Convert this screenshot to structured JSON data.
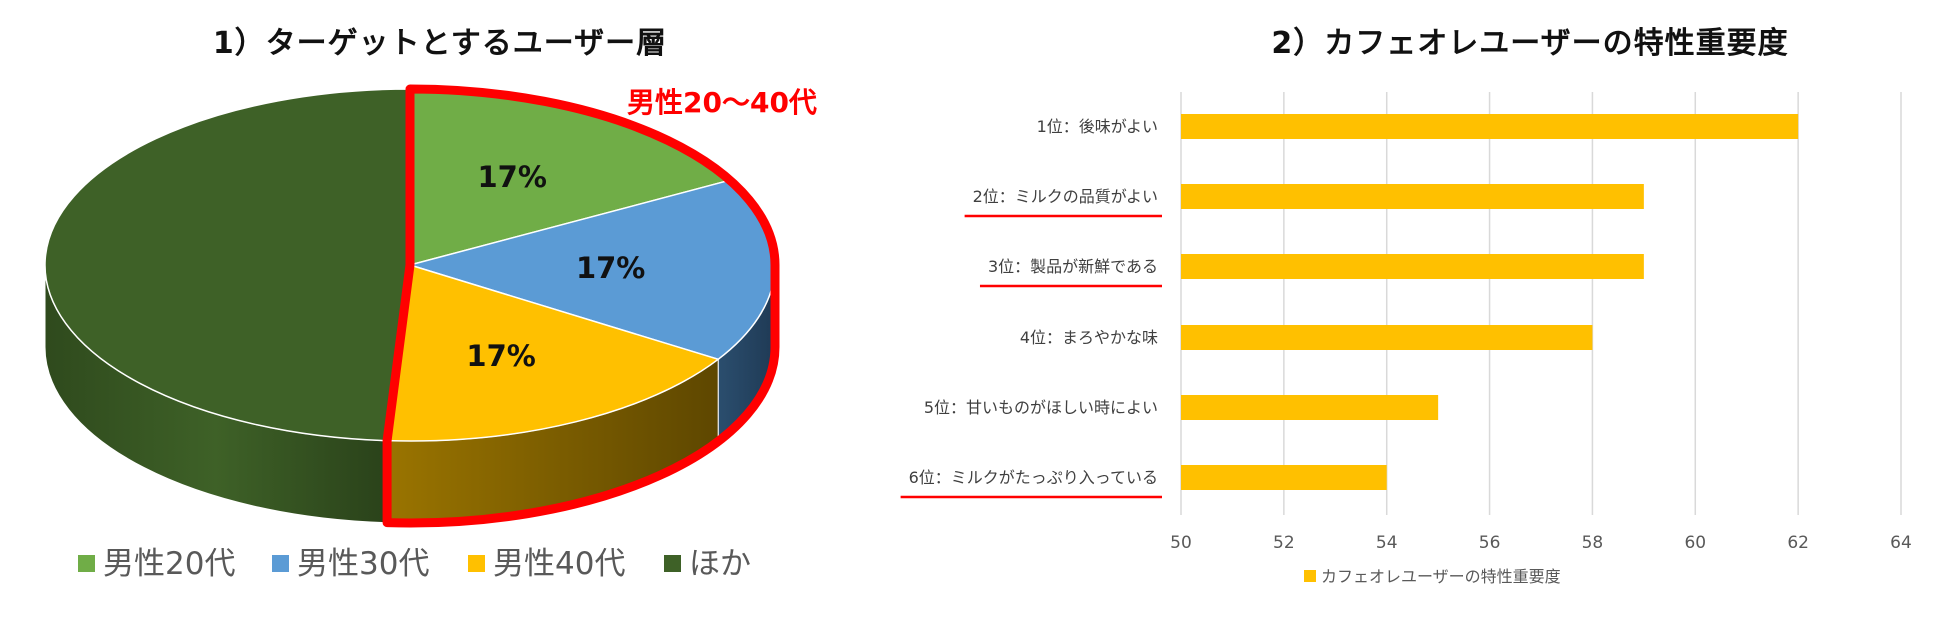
{
  "chart_data": [
    {
      "type": "pie",
      "title": "1）ターゲットとするユーザー層",
      "categories": [
        "男性20代",
        "男性30代",
        "男性40代",
        "ほか"
      ],
      "values": [
        17,
        17,
        17,
        49
      ],
      "data_labels": [
        "17%",
        "17%",
        "17%",
        ""
      ],
      "colors": [
        "#70ad47",
        "#5b9bd5",
        "#ffc000",
        "#3e6127"
      ],
      "legend_position": "bottom",
      "annotation": "男性20〜40代",
      "annotation_color": "#ff0000",
      "style": "3d-pie"
    },
    {
      "type": "bar",
      "orientation": "horizontal",
      "title": "2）カフェオレユーザーの特性重要度",
      "categories": [
        "1位：後味がよい",
        "2位：ミルクの品質がよい",
        "3位：製品が新鮮である",
        "4位：まろやかな味",
        "5位：甘いものがほしい時によい",
        "6位：ミルクがたっぷり入っている"
      ],
      "series": [
        {
          "name": "カフェオレユーザーの特性重要度",
          "values": [
            62,
            59,
            59,
            58,
            55,
            54
          ],
          "color": "#ffc000"
        }
      ],
      "xlim": [
        50,
        64
      ],
      "xticks": [
        "50",
        "52",
        "54",
        "56",
        "58",
        "60",
        "62",
        "64"
      ],
      "grid": "vertical",
      "legend_position": "bottom",
      "underlined_categories": [
        1,
        2,
        5
      ],
      "underline_color": "#ff0000"
    }
  ]
}
